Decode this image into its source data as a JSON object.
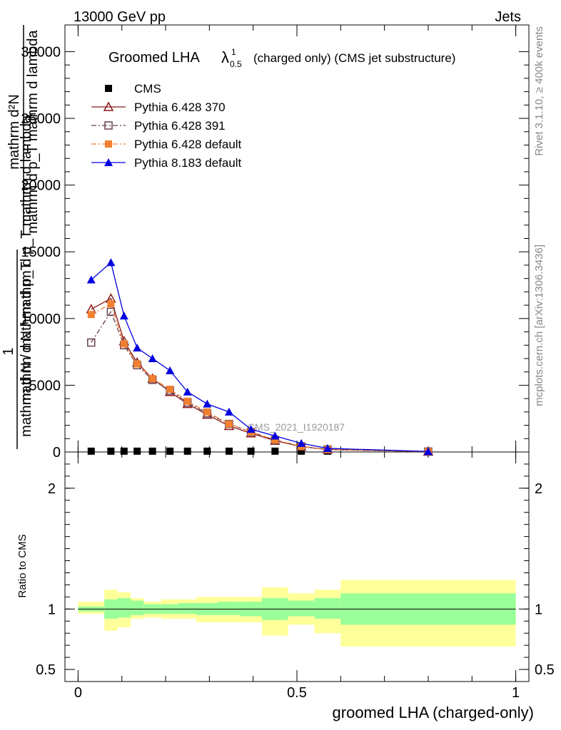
{
  "header": {
    "left": "13000 GeV pp",
    "right": "Jets"
  },
  "side_labels": {
    "rivet": "Rivet 3.1.10, ≥ 400k events",
    "mcplots": "mcplots.cern.ch [arXiv:1306.3436]"
  },
  "watermark": "CMS_2021_I1920187",
  "chart_data": {
    "type": "line",
    "title": "Groomed LHA",
    "title_symbol": "λ",
    "title_sup": "1",
    "title_sub": "0.5",
    "title_suffix": "(charged only) (CMS jet substructure)",
    "xlabel": "groomed LHA (charged-only)",
    "ylabel_main": {
      "top_num": "mathrm d²N",
      "top_den": "mathrm d p_T mathrm d lambda",
      "left_num": "1",
      "left_den": "mathrm d N / mathrm d p_T",
      "combined": "mathrm d N / mathrm d p_T mathrm d lambda"
    },
    "ylabel_ratio": "Ratio to CMS",
    "xlim": [
      -0.03,
      1.03
    ],
    "ylim_main": [
      0,
      32000
    ],
    "ylim_ratio": [
      0.4,
      2.3
    ],
    "x_ticks": [
      0,
      0.5,
      1
    ],
    "x_tick_labels": [
      "0",
      "0.5",
      "1"
    ],
    "y_ticks_main": [
      0,
      5000,
      10000,
      15000,
      20000,
      25000,
      30000
    ],
    "y_tick_labels_main": [
      "0",
      "5000",
      "10000",
      "15000",
      "20000",
      "25000",
      "30000"
    ],
    "y_ticks_ratio": [
      0.5,
      1,
      2
    ],
    "y_tick_labels_ratio": [
      "0.5",
      "1",
      "2"
    ],
    "cms_x": [
      0.03,
      0.075,
      0.105,
      0.135,
      0.17,
      0.21,
      0.25,
      0.295,
      0.345,
      0.395,
      0.45,
      0.51,
      0.57,
      0.8
    ],
    "cms_values": [
      60,
      60,
      60,
      60,
      60,
      60,
      60,
      60,
      60,
      60,
      60,
      60,
      60,
      60
    ],
    "series": [
      {
        "name": "CMS",
        "color": "#000000",
        "marker": "square-filled",
        "dash": "none",
        "x": [
          0.03,
          0.075,
          0.105,
          0.135,
          0.17,
          0.21,
          0.25,
          0.295,
          0.345,
          0.395,
          0.45,
          0.51,
          0.57,
          0.8
        ],
        "values": [
          60,
          60,
          60,
          60,
          60,
          60,
          60,
          60,
          60,
          60,
          60,
          60,
          60,
          60
        ]
      },
      {
        "name": "Pythia 6.428 370",
        "color": "#8b1a1a",
        "marker": "triangle-open",
        "dash": "solid",
        "x": [
          0.03,
          0.075,
          0.105,
          0.135,
          0.17,
          0.21,
          0.25,
          0.295,
          0.345,
          0.395,
          0.45,
          0.51,
          0.57,
          0.8
        ],
        "values": [
          10700,
          11500,
          8300,
          6700,
          5500,
          4500,
          3600,
          2800,
          1950,
          1400,
          850,
          400,
          180,
          30
        ]
      },
      {
        "name": "Pythia 6.428 391",
        "color": "#6b4050",
        "marker": "square-open",
        "dash": "dashdot",
        "x": [
          0.03,
          0.075,
          0.105,
          0.135,
          0.17,
          0.21,
          0.25,
          0.295,
          0.345,
          0.395,
          0.45,
          0.51,
          0.57,
          0.8
        ],
        "values": [
          8200,
          10500,
          8000,
          6500,
          5400,
          4600,
          3700,
          2900,
          2100,
          1500,
          900,
          420,
          190,
          30
        ]
      },
      {
        "name": "Pythia 6.428 default",
        "color": "#f08030",
        "marker": "square-filled",
        "dash": "dashdot",
        "x": [
          0.03,
          0.075,
          0.105,
          0.135,
          0.17,
          0.21,
          0.25,
          0.295,
          0.345,
          0.395,
          0.45,
          0.51,
          0.57,
          0.8
        ],
        "values": [
          10300,
          11100,
          8100,
          6600,
          5500,
          4700,
          3800,
          3000,
          2100,
          1500,
          900,
          420,
          190,
          30
        ]
      },
      {
        "name": "Pythia 8.183 default",
        "color": "#0000e0",
        "marker": "triangle-filled",
        "dash": "solid",
        "x": [
          0.03,
          0.075,
          0.105,
          0.135,
          0.17,
          0.21,
          0.25,
          0.295,
          0.345,
          0.395,
          0.45,
          0.51,
          0.57,
          0.8
        ],
        "values": [
          12900,
          14200,
          10200,
          7800,
          7000,
          6100,
          4500,
          3600,
          3000,
          1700,
          1200,
          650,
          270,
          40
        ]
      }
    ],
    "ratio_bands": {
      "edges": [
        0.0,
        0.06,
        0.09,
        0.12,
        0.15,
        0.19,
        0.23,
        0.27,
        0.32,
        0.37,
        0.42,
        0.48,
        0.54,
        0.6,
        1.0
      ],
      "inner_low": [
        0.98,
        0.92,
        0.93,
        0.95,
        0.96,
        0.96,
        0.96,
        0.95,
        0.95,
        0.94,
        0.91,
        0.94,
        0.92,
        0.87
      ],
      "inner_high": [
        1.02,
        1.08,
        1.09,
        1.07,
        1.04,
        1.04,
        1.05,
        1.05,
        1.06,
        1.06,
        1.09,
        1.07,
        1.09,
        1.13
      ],
      "outer_low": [
        0.96,
        0.82,
        0.85,
        0.92,
        0.93,
        0.92,
        0.92,
        0.89,
        0.89,
        0.89,
        0.78,
        0.87,
        0.8,
        0.69
      ],
      "outer_high": [
        1.06,
        1.16,
        1.14,
        1.09,
        1.06,
        1.08,
        1.08,
        1.1,
        1.1,
        1.1,
        1.18,
        1.13,
        1.16,
        1.24
      ],
      "inner_color": "#99ff99",
      "outer_color": "#ffff99"
    }
  }
}
